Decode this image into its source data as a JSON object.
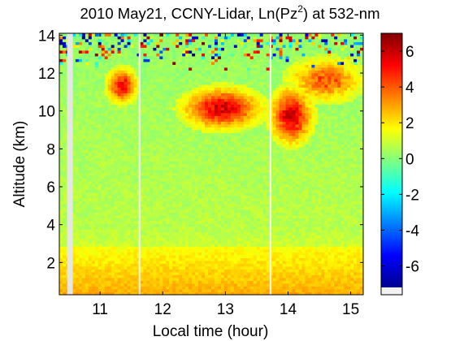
{
  "chart_data": {
    "type": "heatmap",
    "title_main": "2010 May21, CCNY-Lidar, Ln(Pz",
    "title_sup": "2",
    "title_tail": ") at 532-nm",
    "xlabel": "Local time (hour)",
    "ylabel": "Altitude (km)",
    "xlim": [
      10.35,
      15.2
    ],
    "ylim": [
      0.3,
      14.1
    ],
    "x_ticks": [
      "11",
      "12",
      "13",
      "14",
      "15"
    ],
    "x_tick_values": [
      11,
      12,
      13,
      14,
      15
    ],
    "y_ticks": [
      "2",
      "4",
      "6",
      "8",
      "10",
      "12",
      "14"
    ],
    "y_tick_values": [
      2,
      4,
      6,
      8,
      10,
      12,
      14
    ],
    "colorbar": {
      "min": -7.2,
      "max": 7.0,
      "ticks": [
        "-6",
        "-4",
        "-2",
        "0",
        "2",
        "4",
        "6"
      ],
      "tick_values": [
        -6,
        -4,
        -2,
        0,
        2,
        4,
        6
      ],
      "colormap": "jet"
    },
    "data_gaps_hour": [
      10.52,
      11.63,
      13.72
    ],
    "cloud_layers": [
      {
        "start_hour": 11.1,
        "end_hour": 11.6,
        "base_km": 10.4,
        "top_km": 12.3,
        "peak_value": 5.5
      },
      {
        "start_hour": 12.3,
        "end_hour": 13.6,
        "base_km": 9.0,
        "top_km": 11.3,
        "peak_value": 5.8
      },
      {
        "start_hour": 13.7,
        "end_hour": 14.4,
        "base_km": 8.2,
        "top_km": 11.3,
        "peak_value": 6.0
      },
      {
        "start_hour": 14.0,
        "end_hour": 15.2,
        "base_km": 10.5,
        "top_km": 12.8,
        "peak_value": 4.2
      }
    ],
    "boundary_layer_top_km": 2.8,
    "background_value": 0.6,
    "noise_above_km": 12.0
  }
}
